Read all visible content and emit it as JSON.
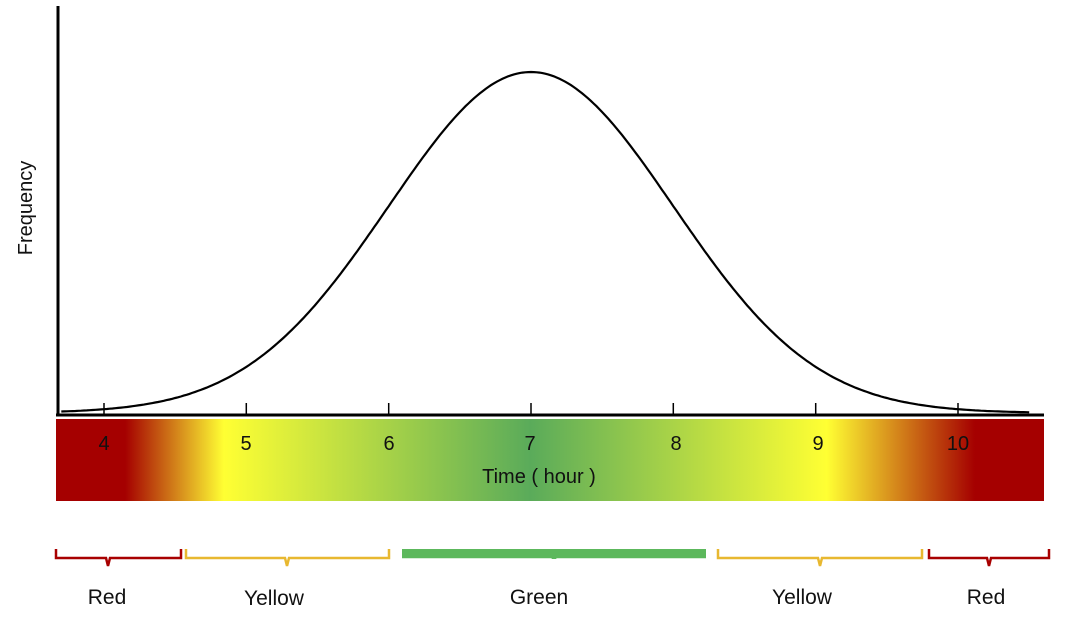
{
  "axes": {
    "y_label": "Frequency",
    "x_label": "Time ( hour )",
    "x_ticks": [
      "4",
      "5",
      "6",
      "7",
      "8",
      "9",
      "10"
    ]
  },
  "curve": {
    "type": "normal",
    "mean": 7,
    "sd": 1,
    "x_range": [
      4,
      10
    ]
  },
  "zones": [
    {
      "name": "Red",
      "from": 3.5,
      "to": 4.5,
      "color": "#a80000"
    },
    {
      "name": "Yellow",
      "from": 4.5,
      "to": 6.0,
      "color": "#e8b830"
    },
    {
      "name": "Green",
      "from": 6.0,
      "to": 8.2,
      "color": "#5cb85c"
    },
    {
      "name": "Yellow",
      "from": 8.2,
      "to": 9.7,
      "color": "#e8b830"
    },
    {
      "name": "Red",
      "from": 9.7,
      "to": 10.6,
      "color": "#a80000"
    }
  ],
  "gradient_colors": {
    "red": "#a50000",
    "yellow": "#ffff33",
    "green": "#5aab5a"
  }
}
